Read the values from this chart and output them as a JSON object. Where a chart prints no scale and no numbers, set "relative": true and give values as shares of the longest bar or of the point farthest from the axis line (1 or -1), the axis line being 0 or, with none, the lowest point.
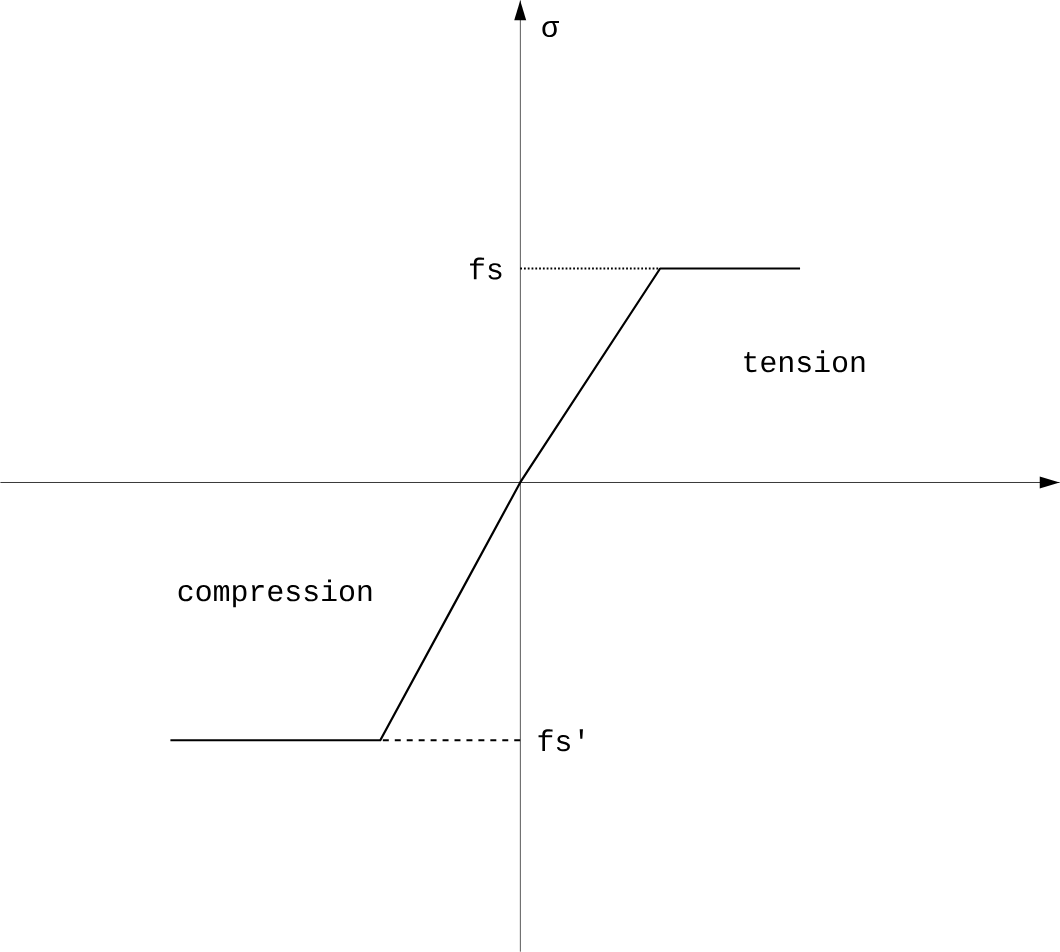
{
  "chart_data": {
    "type": "line",
    "marker": "none",
    "line_style": "solid",
    "categories": [
      null,
      null,
      null,
      null,
      null,
      null,
      null,
      null,
      null,
      null
    ],
    "relative": true,
    "series": [
      {
        "color": "#000000",
        "values": [
          -1,
          -1,
          -1,
          -1,
          -0.5,
          0,
          0.415,
          0.83,
          0.83,
          0.83
        ]
      }
    ],
    "ref_lines": [
      {
        "axis": "y",
        "value": 0.83,
        "label": "fs",
        "line_style": "dotted",
        "color": "#000000"
      },
      {
        "axis": "y",
        "value": -1,
        "label": "fs'",
        "line_style": "dashed",
        "color": "#000000"
      }
    ],
    "annotations": [
      "tension",
      "compression",
      "σ"
    ]
  }
}
